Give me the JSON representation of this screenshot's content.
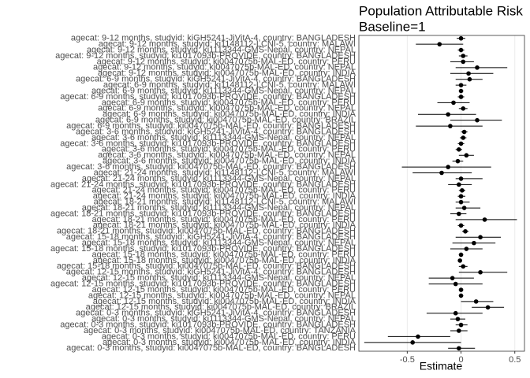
{
  "chart_data": {
    "type": "forest",
    "title": "Population Attributable Risk",
    "subtitle": "Baseline=1",
    "x_label": "Estimate",
    "categories": [
      "agecat: 9-12 months, studyid: kiGH5241-JiVitA-4, country: BANGLADESH",
      "agecat: 9-12 months, studyid: ki1148112-LCNI-5, country: MALAWI",
      "agecat: 9-12 months, studyid: ki1113344-GMS-Nepal, country: NEPAL",
      "agecat: 9-12 months, studyid: ki1017093b-PROVIDE, country: BANGLADESH",
      "agecat: 9-12 months, studyid: ki0047075b-MAL-ED, country: PERU",
      "agecat: 9-12 months, studyid: ki0047075b-MAL-ED, country: NEPAL",
      "agecat: 9-12 months, studyid: ki0047075b-MAL-ED, country: INDIA",
      "agecat: 6-9 months, studyid: kiGH5241-JiVitA-4, country: BANGLADESH",
      "agecat: 6-9 months, studyid: ki1148112-LCNI-5, country: MALAWI",
      "agecat: 6-9 months, studyid: ki1113344-GMS-Nepal, country: NEPAL",
      "agecat: 6-9 months, studyid: ki1017093b-PROVIDE, country: BANGLADESH",
      "agecat: 6-9 months, studyid: ki0047075b-MAL-ED, country: PERU",
      "agecat: 6-9 months, studyid: ki0047075b-MAL-ED, country: NEPAL",
      "agecat: 6-9 months, studyid: ki0047075b-MAL-ED, country: INDIA",
      "agecat: 6-9 months, studyid: ki0047075b-MAL-ED, country: BRAZIL",
      "agecat: 6-9 months, studyid: ki0047075b-MAL-ED, country: BANGLADESH",
      "agecat: 3-6 months, studyid: kiGH5241-JiVitA-4, country: BANGLADESH",
      "agecat: 3-6 months, studyid: ki1113344-GMS-Nepal, country: NEPAL",
      "agecat: 3-6 months, studyid: ki1017093b-PROVIDE, country: BANGLADESH",
      "agecat: 3-6 months, studyid: ki0047075b-MAL-ED, country: PERU",
      "agecat: 3-6 months, studyid: ki0047075b-MAL-ED, country: NEPAL",
      "agecat: 3-6 months, studyid: ki0047075b-MAL-ED, country: INDIA",
      "agecat: 3-6 months, studyid: ki0047075b-MAL-ED, country: BANGLADESH",
      "agecat: 21-24 months, studyid: ki1148112-LCNI-5, country: MALAWI",
      "agecat: 21-24 months, studyid: ki1113344-GMS-Nepal, country: NEPAL",
      "agecat: 21-24 months, studyid: ki1017093b-PROVIDE, country: BANGLADESH",
      "agecat: 21-24 months, studyid: ki0047075b-MAL-ED, country: PERU",
      "agecat: 21-24 months, studyid: ki0047075b-MAL-ED, country: INDIA",
      "agecat: 18-21 months, studyid: ki1148112-LCNI-5, country: MALAWI",
      "agecat: 18-21 months, studyid: ki1113344-GMS-Nepal, country: NEPAL",
      "agecat: 18-21 months, studyid: ki1017093b-PROVIDE, country: BANGLADESH",
      "agecat: 18-21 months, studyid: ki0047075b-MAL-ED, country: PERU",
      "agecat: 18-21 months, studyid: ki0047075b-MAL-ED, country: INDIA",
      "agecat: 18-21 months, studyid: ki0047075b-MAL-ED, country: BANGLADESH",
      "agecat: 15-18 months, studyid: kiGH5241-JiVitA-4, country: BANGLADESH",
      "agecat: 15-18 months, studyid: ki1113344-GMS-Nepal, country: NEPAL",
      "agecat: 15-18 months, studyid: ki1017093b-PROVIDE, country: BANGLADESH",
      "agecat: 15-18 months, studyid: ki0047075b-MAL-ED, country: PERU",
      "agecat: 15-18 months, studyid: ki0047075b-MAL-ED, country: INDIA",
      "agecat: 15-18 months, studyid: ki0047075b-MAL-ED, country: BANGLADESH",
      "agecat: 12-15 months, studyid: kiGH5241-JiVitA-4, country: BANGLADESH",
      "agecat: 12-15 months, studyid: ki1113344-GMS-Nepal, country: NEPAL",
      "agecat: 12-15 months, studyid: ki1017093b-PROVIDE, country: BANGLADESH",
      "agecat: 12-15 months, studyid: ki0047075b-MAL-ED, country: PERU",
      "agecat: 12-15 months, studyid: ki0047075b-MAL-ED, country: NEPAL",
      "agecat: 12-15 months, studyid: ki0047075b-MAL-ED, country: INDIA",
      "agecat: 12-15 months, studyid: ki0047075b-MAL-ED, country: BRAZIL",
      "agecat: 0-3 months, studyid: kiGH5241-JiVitA-4, country: BANGLADESH",
      "agecat: 0-3 months, studyid: ki1113344-GMS-Nepal, country: NEPAL",
      "agecat: 0-3 months, studyid: ki1017093b-PROVIDE, country: BANGLADESH",
      "agecat: 0-3 months, studyid: ki0047075b-MAL-ED, country: TANZANIA",
      "agecat: 0-3 months, studyid: ki0047075b-MAL-ED, country: PERU",
      "agecat: 0-3 months, studyid: ki0047075b-MAL-ED, country: INDIA",
      "agecat: 0-3 months, studyid: ki0047075b-MAL-ED, country: BANGLADESH"
    ],
    "values": [
      0,
      -0.2,
      0,
      0.02,
      0.02,
      0.15,
      0.07,
      0.08,
      0,
      0,
      0,
      -0.07,
      0.02,
      -0.12,
      0.15,
      -0.1,
      0.03,
      0.02,
      0,
      -0.02,
      0.05,
      -0.03,
      -0.12,
      -0.18,
      0,
      -0.02,
      0.01,
      0,
      0,
      0.03,
      -0.02,
      0.22,
      0,
      0.04,
      0.18,
      0.12,
      0.05,
      0,
      -0.01,
      0.02,
      0.18,
      -0.08,
      -0.05,
      0,
      0,
      0.14,
      0.25,
      -0.05,
      -0.03,
      0,
      -0.02,
      -0.4,
      -0.45,
      -0.02
    ],
    "lower": [
      -0.04,
      -0.42,
      -0.03,
      -0.02,
      -0.1,
      -0.05,
      -0.1,
      -0.05,
      -0.05,
      -0.02,
      -0.03,
      -0.22,
      -0.02,
      -0.4,
      -0.1,
      -0.42,
      0,
      -0.01,
      -0.03,
      -0.05,
      -0.02,
      -0.08,
      -0.55,
      -0.45,
      -0.05,
      -0.12,
      -0.02,
      -0.03,
      -0.05,
      -0.05,
      -0.1,
      -0.05,
      -0.03,
      0.01,
      -0.05,
      -0.08,
      -0.1,
      -0.02,
      -0.03,
      -0.02,
      -0.02,
      -0.3,
      -0.3,
      -0.02,
      -0.02,
      0,
      0.1,
      -0.32,
      -0.1,
      -0.05,
      -0.1,
      -0.68,
      -0.9,
      -0.12
    ],
    "upper": [
      0.04,
      0.02,
      0.03,
      0.06,
      0.12,
      0.43,
      0.3,
      0.2,
      0.05,
      0.02,
      0.03,
      0.08,
      0.06,
      0.14,
      0.38,
      0.2,
      0.06,
      0.05,
      0.03,
      0.01,
      0.12,
      0.02,
      0.28,
      0.1,
      0.2,
      0.1,
      0.04,
      0.04,
      0.08,
      0.18,
      0.05,
      0.52,
      0.03,
      0.07,
      0.37,
      0.32,
      0.2,
      0.02,
      0.01,
      0.06,
      0.43,
      0.12,
      0.2,
      0.02,
      0.02,
      0.3,
      0.4,
      0.2,
      0.04,
      0.06,
      0.06,
      -0.1,
      0,
      0.13
    ],
    "xlim": [
      -0.95,
      0.59
    ],
    "xticks": [
      -0.5,
      0,
      0.5
    ],
    "grid": true,
    "color": "#000000"
  }
}
